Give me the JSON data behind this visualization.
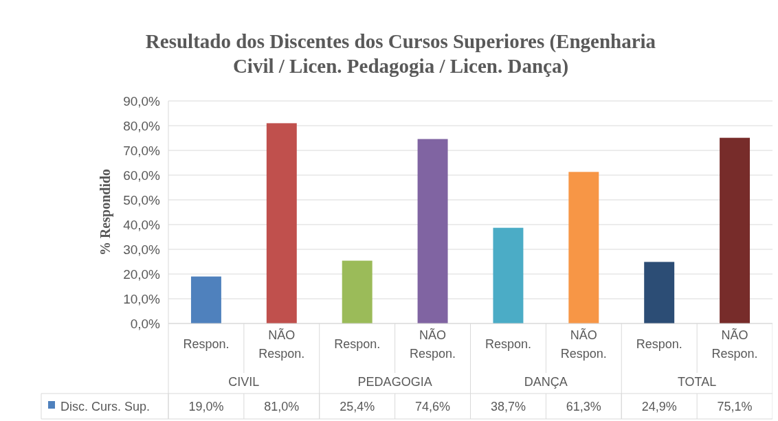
{
  "chart_data": {
    "type": "bar",
    "title": "Resultado dos Discentes dos Cursos Superiores (Engenharia Civil / Licen. Pedagogia / Licen. Dança)",
    "ylabel": "% Respondido",
    "categories": [
      "Respon.",
      "NÃO Respon.",
      "Respon.",
      "NÃO Respon.",
      "Respon.",
      "NÃO Respon.",
      "Respon.",
      "NÃO Respon."
    ],
    "annotations": [
      "CIVIL",
      "PEDAGOGIA",
      "DANÇA",
      "TOTAL"
    ],
    "series": [
      {
        "name": "Disc. Curs. Sup.",
        "color": "#4f81bd",
        "colors": [
          "#4f81bd",
          "#c0504d",
          "#9bbb59",
          "#8064a2",
          "#4bacc6",
          "#f79646",
          "#2c4d75",
          "#772c2a"
        ],
        "values": [
          19.0,
          81.0,
          25.4,
          74.6,
          38.7,
          61.3,
          24.9,
          75.1
        ],
        "value_labels": [
          "19,0%",
          "81,0%",
          "25,4%",
          "74,6%",
          "38,7%",
          "61,3%",
          "24,9%",
          "75,1%"
        ]
      }
    ],
    "ylim": [
      0,
      90
    ],
    "yticks": [
      {
        "value": 0,
        "label": "0,0%"
      },
      {
        "value": 10,
        "label": "10,0%"
      },
      {
        "value": 20,
        "label": "20,0%"
      },
      {
        "value": 30,
        "label": "30,0%"
      },
      {
        "value": 40,
        "label": "40,0%"
      },
      {
        "value": 50,
        "label": "50,0%"
      },
      {
        "value": 60,
        "label": "60,0%"
      },
      {
        "value": 70,
        "label": "70,0%"
      },
      {
        "value": 80,
        "label": "80,0%"
      },
      {
        "value": 90,
        "label": "90,0%"
      }
    ],
    "grid": "y",
    "legend": "bottom"
  }
}
